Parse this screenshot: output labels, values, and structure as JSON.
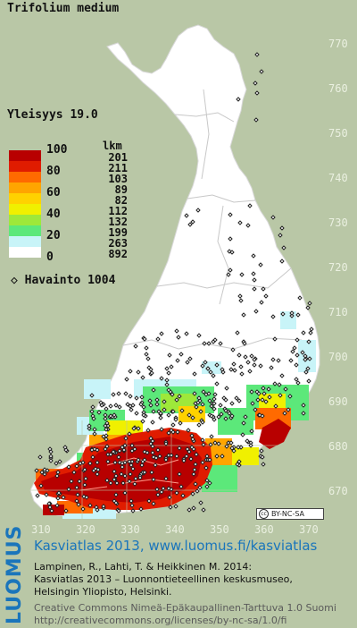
{
  "title": "Trifolium medium",
  "yleisyys": "Yleisyys  19.0",
  "legend": {
    "header": "lkm",
    "bins": [
      {
        "label": "100",
        "color": "#b80000",
        "count": "201"
      },
      {
        "label": "80",
        "color": "#e01c00",
        "count": "211"
      },
      {
        "label": "",
        "color": "#ff6a00",
        "count": "103"
      },
      {
        "label": "60",
        "color": "#ffa500",
        "count": "89"
      },
      {
        "label": "",
        "color": "#ffd200",
        "count": "82"
      },
      {
        "label": "40",
        "color": "#f0f000",
        "count": "112"
      },
      {
        "label": "",
        "color": "#9ee83a",
        "count": "132"
      },
      {
        "label": "20",
        "color": "#5ce87a",
        "count": "199"
      },
      {
        "label": "",
        "color": "#c8f4f8",
        "count": "263"
      },
      {
        "label": "0",
        "color": "#ffffff",
        "count": "892"
      }
    ]
  },
  "havainto": "◇ Havainto 1004",
  "axes": {
    "y_ticks": [
      "770",
      "760",
      "750",
      "740",
      "730",
      "720",
      "710",
      "700",
      "690",
      "680",
      "670"
    ],
    "x_ticks": [
      "310",
      "320",
      "330",
      "340",
      "350",
      "360",
      "370"
    ]
  },
  "license_badge": "BY-NC-SA",
  "footer": {
    "logo": "LUOMUS",
    "link": "Kasviatlas 2013, www.luomus.fi/kasviatlas",
    "citation_1": "Lampinen, R., Lahti, T. & Heikkinen M. 2014:",
    "citation_2": "Kasviatlas 2013 – Luonnontieteellinen keskusmuseo,",
    "citation_3": "Helsingin Yliopisto, Helsinki.",
    "license_1": "Creative Commons Nimeä-Epäkaupallinen-Tarttuva 1.0 Suomi",
    "license_2": "http://creativecommons.org/licenses/by-nc-sa/1.0/fi"
  }
}
